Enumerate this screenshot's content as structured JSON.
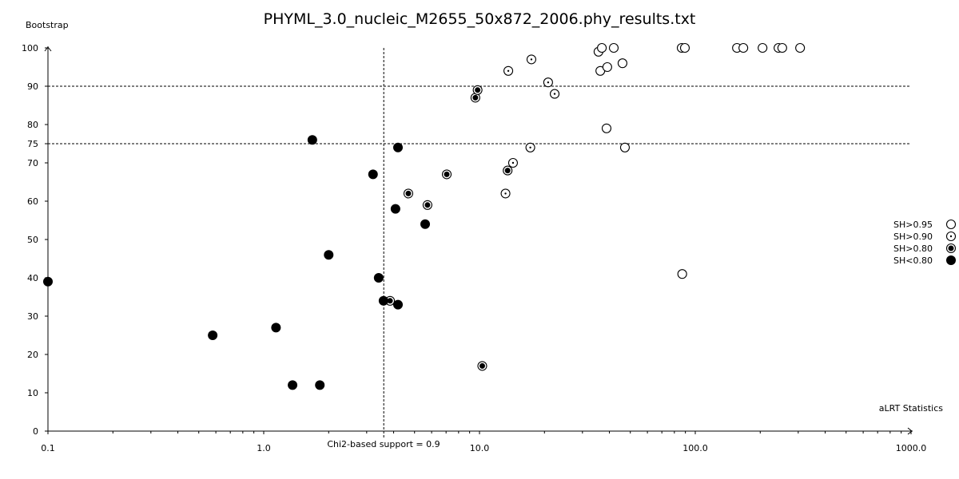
{
  "chart_data": {
    "type": "scatter",
    "title": "PHYML_3.0_nucleic_M2655_50x872_2006.phy_results.txt",
    "xlabel": "aLRT Statistics",
    "ylabel": "Bootstrap",
    "xscale": "log",
    "xlim": [
      0.1,
      1000
    ],
    "ylim": [
      0,
      100
    ],
    "x_ticks": [
      0.1,
      1,
      10,
      100,
      1000
    ],
    "x_tick_labels": [
      "0.1",
      "1.0",
      "10.0",
      "100.0",
      "1000.0"
    ],
    "y_ticks": [
      0,
      10,
      20,
      30,
      40,
      50,
      60,
      70,
      75,
      80,
      90,
      100
    ],
    "y_tick_labels": [
      "0",
      "10",
      "20",
      "30",
      "40",
      "50",
      "60",
      "70",
      "75",
      "80",
      "90",
      "100"
    ],
    "reference_lines": {
      "horizontal": [
        75,
        90
      ],
      "vertical": 3.6,
      "vertical_label": "Chi2-based support = 0.9"
    },
    "legend_position": "right",
    "series": [
      {
        "name": "SH>0.95",
        "marker": "open",
        "points": [
          [
            35.6,
            99
          ],
          [
            36.9,
            100
          ],
          [
            41.9,
            100
          ],
          [
            36.3,
            94
          ],
          [
            39.1,
            95
          ],
          [
            46.0,
            96
          ],
          [
            38.8,
            79
          ],
          [
            47.2,
            74
          ],
          [
            86.5,
            100
          ],
          [
            89.5,
            100
          ],
          [
            156,
            100
          ],
          [
            167,
            100
          ],
          [
            205,
            100
          ],
          [
            243,
            100
          ],
          [
            253,
            100
          ],
          [
            306,
            100
          ],
          [
            87,
            41
          ]
        ]
      },
      {
        "name": "SH>0.90",
        "marker": "dot",
        "points": [
          [
            13.6,
            94
          ],
          [
            17.4,
            97
          ],
          [
            20.8,
            91
          ],
          [
            22.3,
            88
          ],
          [
            14.3,
            70
          ],
          [
            17.2,
            74
          ],
          [
            13.2,
            62
          ]
        ]
      },
      {
        "name": "SH>0.80",
        "marker": "ringed",
        "points": [
          [
            4.68,
            62
          ],
          [
            5.74,
            59
          ],
          [
            7.05,
            67
          ],
          [
            9.57,
            87
          ],
          [
            9.8,
            89
          ],
          [
            10.3,
            17
          ],
          [
            13.5,
            68
          ],
          [
            3.85,
            34
          ]
        ]
      },
      {
        "name": "SH<0.80",
        "marker": "filled",
        "points": [
          [
            0.1,
            39
          ],
          [
            0.58,
            25
          ],
          [
            1.14,
            27
          ],
          [
            1.36,
            12
          ],
          [
            1.82,
            12
          ],
          [
            1.68,
            76
          ],
          [
            2.0,
            46
          ],
          [
            3.21,
            67
          ],
          [
            3.41,
            40
          ],
          [
            3.59,
            34
          ],
          [
            4.08,
            58
          ],
          [
            4.19,
            33
          ],
          [
            4.19,
            74
          ],
          [
            5.6,
            54
          ]
        ]
      }
    ]
  }
}
